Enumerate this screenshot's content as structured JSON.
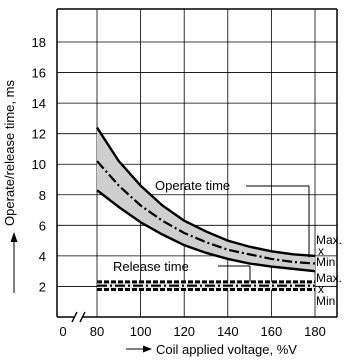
{
  "chart_data": {
    "type": "line",
    "xlabel": "Coil applied voltage, %V",
    "ylabel": "Operate/release time, ms",
    "x_ticks": [
      0,
      80,
      100,
      120,
      140,
      160,
      180
    ],
    "y_ticks": [
      2,
      4,
      6,
      8,
      10,
      12,
      14,
      16,
      18
    ],
    "x_tick_labels": [
      "0",
      "80",
      "100",
      "120",
      "140",
      "160",
      "180"
    ],
    "y_tick_labels": [
      "2",
      "4",
      "6",
      "8",
      "10",
      "12",
      "14",
      "16",
      "18"
    ],
    "xlim": [
      80,
      190
    ],
    "ylim": [
      0,
      20
    ],
    "x_axis_break": true,
    "grid": true,
    "annotations": {
      "operate": "Operate time",
      "release": "Release time",
      "max": "Max.",
      "x": "x",
      "min": "Min."
    },
    "series": [
      {
        "name": "Operate time Max.",
        "style": "solid",
        "x": [
          80,
          90,
          100,
          110,
          120,
          130,
          140,
          150,
          160,
          170,
          180
        ],
        "y": [
          12.4,
          10.2,
          8.6,
          7.3,
          6.3,
          5.6,
          5.0,
          4.6,
          4.3,
          4.1,
          4.0
        ]
      },
      {
        "name": "Operate time x",
        "style": "dash-dot",
        "x": [
          80,
          90,
          100,
          110,
          120,
          130,
          140,
          150,
          160,
          170,
          180
        ],
        "y": [
          10.2,
          8.6,
          7.3,
          6.3,
          5.5,
          4.9,
          4.4,
          4.1,
          3.8,
          3.6,
          3.5
        ]
      },
      {
        "name": "Operate time Min.",
        "style": "solid",
        "x": [
          80,
          90,
          100,
          110,
          120,
          130,
          140,
          150,
          160,
          170,
          180
        ],
        "y": [
          8.3,
          7.2,
          6.2,
          5.4,
          4.7,
          4.2,
          3.8,
          3.5,
          3.3,
          3.15,
          3.0
        ]
      },
      {
        "name": "Release time Max.",
        "style": "dashed",
        "x": [
          80,
          180
        ],
        "y": [
          2.3,
          2.3
        ]
      },
      {
        "name": "Release time x",
        "style": "dash-dot",
        "x": [
          80,
          180
        ],
        "y": [
          2.05,
          2.05
        ]
      },
      {
        "name": "Release time Min.",
        "style": "dashed",
        "x": [
          80,
          180
        ],
        "y": [
          1.8,
          1.8
        ]
      }
    ]
  }
}
